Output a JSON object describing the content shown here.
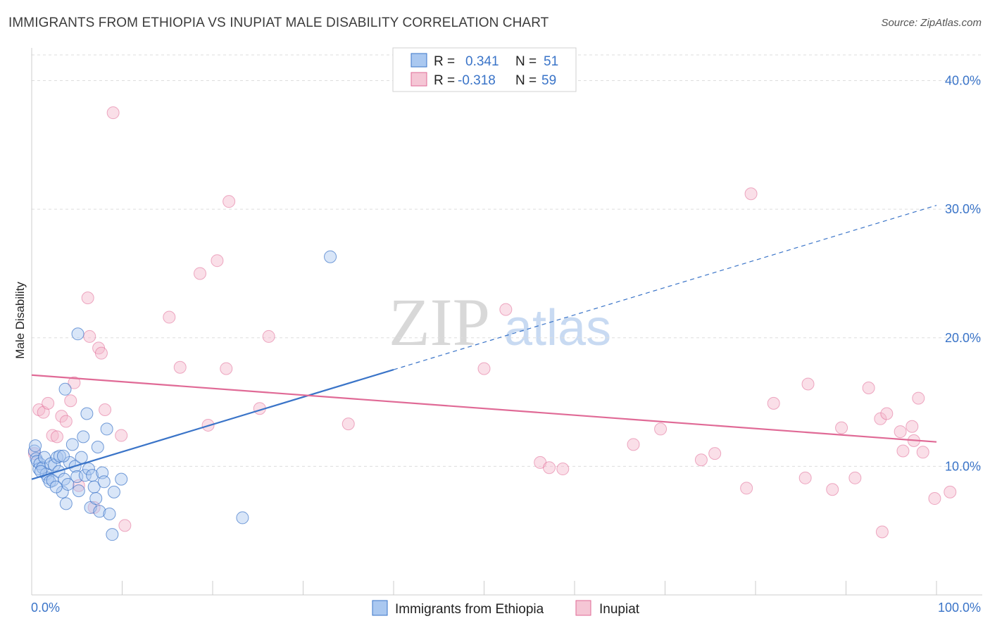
{
  "header": {
    "title": "IMMIGRANTS FROM ETHIOPIA VS INUPIAT MALE DISABILITY CORRELATION CHART",
    "source": "Source: ZipAtlas.com"
  },
  "watermark": {
    "zip": "ZIP",
    "atlas": "atlas"
  },
  "colors": {
    "blue": "#3a74c8",
    "blue_fill": "#aac8f0",
    "pink": "#e06a96",
    "pink_fill": "#f5b9cc"
  },
  "legend": {
    "rows": [
      {
        "r_label": "R =",
        "r_value": "0.341",
        "n_label": "N =",
        "n_value": "51"
      },
      {
        "r_label": "R =",
        "r_value": "-0.318",
        "n_label": "N =",
        "n_value": "59"
      }
    ]
  },
  "bottom_legend": [
    "Immigrants from Ethiopia",
    "Inupiat"
  ],
  "chart_data": {
    "type": "scatter",
    "title": "IMMIGRANTS FROM ETHIOPIA VS INUPIAT MALE DISABILITY CORRELATION CHART",
    "xlabel": "",
    "ylabel": "Male Disability",
    "xlim": [
      0,
      100
    ],
    "ylim": [
      0,
      42
    ],
    "x_tick_labels": [
      "0.0%",
      "100.0%"
    ],
    "y_ticks": [
      10,
      20,
      30,
      40
    ],
    "y_tick_labels": [
      "10.0%",
      "20.0%",
      "30.0%",
      "40.0%"
    ],
    "series": [
      {
        "name": "Immigrants from Ethiopia",
        "r": 0.341,
        "n": 51,
        "trend": {
          "x0": 0,
          "y0": 9.0,
          "x1": 100,
          "y1": 30.3,
          "solid_until_x": 40
        },
        "points": [
          [
            0.3,
            11.2
          ],
          [
            0.5,
            10.6
          ],
          [
            0.6,
            10.4
          ],
          [
            0.8,
            9.8
          ],
          [
            0.9,
            10.2
          ],
          [
            1.2,
            9.9
          ],
          [
            1.4,
            10.7
          ],
          [
            1.6,
            9.4
          ],
          [
            1.8,
            9.1
          ],
          [
            2.0,
            8.8
          ],
          [
            2.1,
            10.2
          ],
          [
            2.3,
            8.9
          ],
          [
            2.5,
            10.1
          ],
          [
            2.8,
            10.7
          ],
          [
            3.0,
            9.6
          ],
          [
            3.1,
            10.8
          ],
          [
            3.4,
            8.0
          ],
          [
            3.6,
            9.0
          ],
          [
            3.8,
            7.1
          ],
          [
            4.0,
            8.6
          ],
          [
            4.2,
            10.3
          ],
          [
            4.5,
            11.7
          ],
          [
            4.8,
            10.0
          ],
          [
            5.0,
            9.2
          ],
          [
            5.2,
            8.1
          ],
          [
            5.5,
            10.7
          ],
          [
            5.7,
            12.3
          ],
          [
            5.9,
            9.3
          ],
          [
            6.1,
            14.1
          ],
          [
            6.3,
            9.8
          ],
          [
            6.5,
            6.8
          ],
          [
            6.7,
            9.3
          ],
          [
            6.9,
            8.4
          ],
          [
            7.1,
            7.5
          ],
          [
            7.3,
            11.5
          ],
          [
            7.5,
            6.5
          ],
          [
            7.8,
            9.5
          ],
          [
            8.0,
            8.8
          ],
          [
            8.3,
            12.9
          ],
          [
            8.6,
            6.3
          ],
          [
            8.9,
            4.7
          ],
          [
            9.1,
            8.0
          ],
          [
            9.9,
            9.0
          ],
          [
            3.5,
            10.8
          ],
          [
            2.7,
            8.4
          ],
          [
            1.0,
            9.6
          ],
          [
            0.4,
            11.6
          ],
          [
            5.1,
            20.3
          ],
          [
            3.7,
            16.0
          ],
          [
            23.3,
            6.0
          ],
          [
            33.0,
            26.3
          ]
        ]
      },
      {
        "name": "Inupiat",
        "r": -0.318,
        "n": 59,
        "trend": {
          "x0": 0,
          "y0": 17.1,
          "x1": 100,
          "y1": 11.9
        },
        "points": [
          [
            0.3,
            11.0
          ],
          [
            0.8,
            14.4
          ],
          [
            1.3,
            14.2
          ],
          [
            1.8,
            14.9
          ],
          [
            2.3,
            12.4
          ],
          [
            2.8,
            12.3
          ],
          [
            3.3,
            13.9
          ],
          [
            3.8,
            13.5
          ],
          [
            4.3,
            15.1
          ],
          [
            4.7,
            16.5
          ],
          [
            5.2,
            8.5
          ],
          [
            6.2,
            23.1
          ],
          [
            6.4,
            20.1
          ],
          [
            6.9,
            6.8
          ],
          [
            7.4,
            19.2
          ],
          [
            7.7,
            18.8
          ],
          [
            8.1,
            14.4
          ],
          [
            9.0,
            37.5
          ],
          [
            9.9,
            12.4
          ],
          [
            10.3,
            5.4
          ],
          [
            15.2,
            21.6
          ],
          [
            16.4,
            17.7
          ],
          [
            18.6,
            25.0
          ],
          [
            19.5,
            13.2
          ],
          [
            20.5,
            26.0
          ],
          [
            21.5,
            17.6
          ],
          [
            21.8,
            30.6
          ],
          [
            25.2,
            14.5
          ],
          [
            26.2,
            20.1
          ],
          [
            35.0,
            13.3
          ],
          [
            50.0,
            17.6
          ],
          [
            52.4,
            22.2
          ],
          [
            56.2,
            10.3
          ],
          [
            57.2,
            9.9
          ],
          [
            58.7,
            9.8
          ],
          [
            66.5,
            11.7
          ],
          [
            69.5,
            12.9
          ],
          [
            74.0,
            10.5
          ],
          [
            75.5,
            11.0
          ],
          [
            79.0,
            8.3
          ],
          [
            79.5,
            31.2
          ],
          [
            82.0,
            14.9
          ],
          [
            85.5,
            9.1
          ],
          [
            85.8,
            16.4
          ],
          [
            88.5,
            8.2
          ],
          [
            89.5,
            13.0
          ],
          [
            91.0,
            9.1
          ],
          [
            92.5,
            16.1
          ],
          [
            93.8,
            13.7
          ],
          [
            94.0,
            4.9
          ],
          [
            94.5,
            14.1
          ],
          [
            96.0,
            12.7
          ],
          [
            96.3,
            11.2
          ],
          [
            97.3,
            13.1
          ],
          [
            97.5,
            12.0
          ],
          [
            98.0,
            15.3
          ],
          [
            98.5,
            11.1
          ],
          [
            99.8,
            7.5
          ],
          [
            101.5,
            8.0
          ]
        ]
      }
    ]
  }
}
